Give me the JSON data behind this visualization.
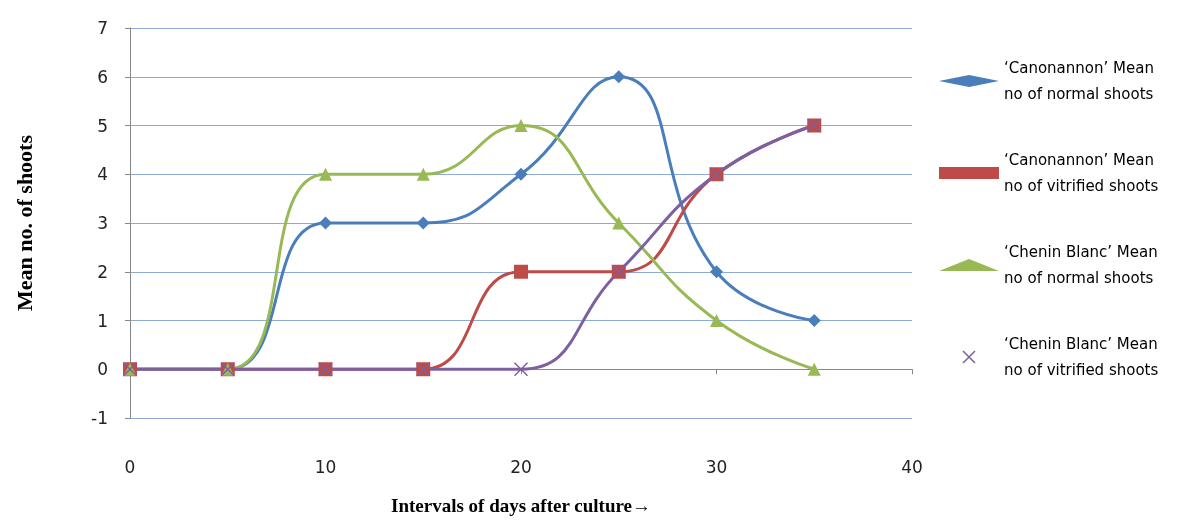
{
  "chart_data": {
    "type": "line",
    "xlabel": "Intervals of days after culture→",
    "ylabel": "Mean no. of shoots",
    "x": [
      0,
      5,
      10,
      15,
      20,
      25,
      30,
      35
    ],
    "series": [
      {
        "name": "‘Canonannon’ Mean no of normal shoots",
        "color": "#4a7ebb",
        "marker": "diamond",
        "values": [
          0,
          0,
          3,
          3,
          4,
          6,
          2,
          1
        ]
      },
      {
        "name": "‘Canonannon’ Mean no of vitrified shoots",
        "color": "#be4b48",
        "marker": "square",
        "values": [
          0,
          0,
          0,
          0,
          2,
          2,
          4,
          5
        ]
      },
      {
        "name": "‘Chenin Blanc’ Mean no of normal shoots",
        "color": "#98b954",
        "marker": "triangle",
        "values": [
          0,
          0,
          4,
          4,
          5,
          3,
          1,
          0
        ]
      },
      {
        "name": "‘Chenin Blanc’ Mean no of vitrified shoots",
        "color": "#7d60a0",
        "marker": "cross",
        "values": [
          0,
          0,
          0,
          0,
          0,
          2,
          4,
          5
        ]
      }
    ],
    "xlim": [
      0,
      40
    ],
    "xticks": [
      0,
      10,
      20,
      30,
      40
    ],
    "ylim": [
      -1,
      7
    ],
    "yticks": [
      -1,
      0,
      1,
      2,
      3,
      4,
      5,
      6,
      7
    ],
    "grid": "y",
    "legend": "right",
    "line_style": "solid"
  }
}
